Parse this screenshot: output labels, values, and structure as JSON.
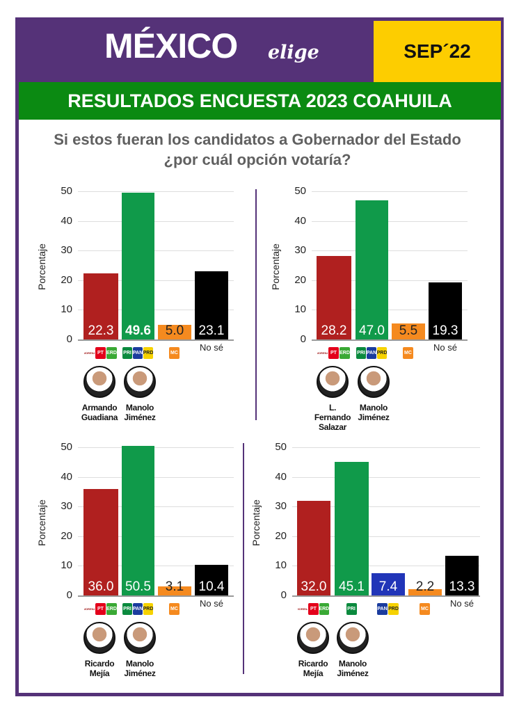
{
  "header": {
    "logo_main": "MÉXICO",
    "logo_sub": "elige",
    "date": "SEP´22",
    "title": "RESULTADOS ENCUESTA 2023 COAHUILA",
    "question": "Si estos fueran los candidatos a Gobernador del Estado ¿por cuál opción votaría?"
  },
  "colors": {
    "morena": "#b0201f",
    "pri": "#109a4a",
    "mc": "#f58a1f",
    "none": "#000000",
    "pan": "#2135b8"
  },
  "chart_data": [
    {
      "type": "bar",
      "ylabel": "Porcentaje",
      "ylim": [
        0,
        50
      ],
      "yticks": [
        0,
        10,
        20,
        30,
        40,
        50
      ],
      "categories": [
        "Morena-PT-Verde",
        "PRI-PAN-PRD",
        "MC",
        "No sé"
      ],
      "values": [
        22.3,
        49.6,
        5.0,
        23.1
      ],
      "bar_colors": [
        "#b0201f",
        "#109a4a",
        "#f58a1f",
        "#000000"
      ],
      "bold": [
        false,
        true,
        false,
        false
      ],
      "logos": [
        [
          "MORENA",
          "PT",
          "VERDE"
        ],
        [
          "PRI",
          "PAN",
          "PRD"
        ],
        [
          "MC"
        ],
        []
      ],
      "no_se_label": "No sé",
      "candidates": [
        "Armando Guadiana",
        "Manolo Jiménez"
      ]
    },
    {
      "type": "bar",
      "ylabel": "Porcentaje",
      "ylim": [
        0,
        50
      ],
      "yticks": [
        0,
        10,
        20,
        30,
        40,
        50
      ],
      "categories": [
        "Morena-PT-Verde",
        "PRI-PAN-PRD",
        "MC",
        "No sé"
      ],
      "values": [
        28.2,
        47.0,
        5.5,
        19.3
      ],
      "bar_colors": [
        "#b0201f",
        "#109a4a",
        "#f58a1f",
        "#000000"
      ],
      "bold": [
        false,
        false,
        false,
        false
      ],
      "logos": [
        [
          "MORENA",
          "PT",
          "VERDE"
        ],
        [
          "PRI",
          "PAN",
          "PRD"
        ],
        [
          "MC"
        ],
        []
      ],
      "no_se_label": "No sé",
      "candidates": [
        "L. Fernando Salazar",
        "Manolo Jiménez"
      ]
    },
    {
      "type": "bar",
      "ylabel": "Porcentaje",
      "ylim": [
        0,
        50
      ],
      "yticks": [
        0,
        10,
        20,
        30,
        40,
        50
      ],
      "categories": [
        "Morena-PT-Verde",
        "PRI-PAN-PRD",
        "MC",
        "No sé"
      ],
      "values": [
        36.0,
        50.5,
        3.1,
        10.4
      ],
      "bar_colors": [
        "#b0201f",
        "#109a4a",
        "#f58a1f",
        "#000000"
      ],
      "bold": [
        false,
        false,
        false,
        false
      ],
      "logos": [
        [
          "MORENA",
          "PT",
          "VERDE"
        ],
        [
          "PRI",
          "PAN",
          "PRD"
        ],
        [
          "MC"
        ],
        []
      ],
      "no_se_label": "No sé",
      "candidates": [
        "Ricardo Mejía",
        "Manolo Jiménez"
      ]
    },
    {
      "type": "bar",
      "ylabel": "Porcentaje",
      "ylim": [
        0,
        50
      ],
      "yticks": [
        0,
        10,
        20,
        30,
        40,
        50
      ],
      "categories": [
        "Morena-PT-Verde",
        "PRI",
        "PAN-PRD",
        "MC",
        "No sé"
      ],
      "values": [
        32.0,
        45.1,
        7.4,
        2.2,
        13.3
      ],
      "bar_colors": [
        "#b0201f",
        "#109a4a",
        "#2135b8",
        "#f58a1f",
        "#000000"
      ],
      "bold": [
        false,
        false,
        false,
        false,
        false
      ],
      "logos": [
        [
          "MORENA",
          "PT",
          "VERDE"
        ],
        [
          "PRI"
        ],
        [
          "PAN",
          "PRD"
        ],
        [
          "MC"
        ],
        []
      ],
      "no_se_label": "No sé",
      "candidates": [
        "Ricardo Mejía",
        "Manolo Jiménez"
      ]
    }
  ]
}
